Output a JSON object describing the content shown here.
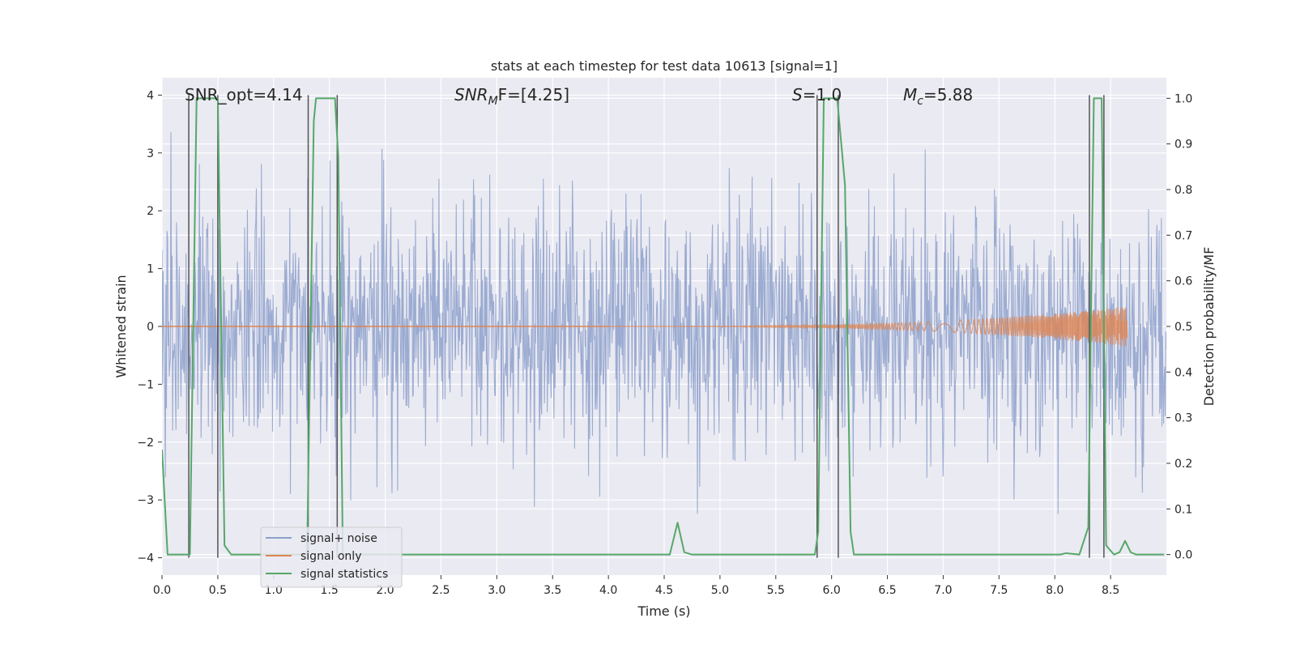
{
  "chart_data": {
    "type": "line",
    "title": "stats at each timestep for test data 10613 [signal=1]",
    "xlabel": "Time (s)",
    "ylabel": "Whitened strain",
    "y2label": "Detection probability/MF",
    "xlim": [
      0,
      9
    ],
    "ylim": [
      -4.3,
      4.3
    ],
    "y2lim": [
      -0.045,
      1.045
    ],
    "xticks": [
      "0.0",
      "0.5",
      "1.0",
      "1.5",
      "2.0",
      "2.5",
      "3.0",
      "3.5",
      "4.0",
      "4.5",
      "5.0",
      "5.5",
      "6.0",
      "6.5",
      "7.0",
      "7.5",
      "8.0",
      "8.5"
    ],
    "yticks": [
      "4",
      "3",
      "2",
      "1",
      "0",
      "−1",
      "−2",
      "−3",
      "−4"
    ],
    "y2ticks": [
      "1.0",
      "0.9",
      "0.8",
      "0.7",
      "0.6",
      "0.5",
      "0.4",
      "0.3",
      "0.2",
      "0.1",
      "0.0"
    ],
    "annotations": {
      "snr_opt": "SNR_opt=4.14",
      "snr_mf_main": "SNR",
      "snr_mf_sub": "M",
      "snr_mf_rest": "F=[4.25]",
      "s": "S",
      "s_rest": "=1.0",
      "mc": "M",
      "mc_sub": "c",
      "mc_rest": "=5.88"
    },
    "legend": {
      "position": "lower-left",
      "entries": [
        "signal+ noise",
        "signal only",
        "signal statistics"
      ]
    },
    "colors": {
      "noise": "#8da0cb",
      "signal": "#dd8452",
      "stats": "#55a868",
      "vlines": "#555555",
      "background": "#eaeaf2",
      "grid": "#ffffff"
    },
    "vertical_lines": [
      0.24,
      0.5,
      1.31,
      1.57,
      5.87,
      6.06,
      8.31,
      8.44
    ],
    "signal_only": {
      "start": 4.0,
      "end": 8.65,
      "peak_amplitude": 0.35
    },
    "series": [
      {
        "name": "signal statistics",
        "axis": "right",
        "x": [
          0.0,
          0.05,
          0.25,
          0.31,
          0.5,
          0.56,
          0.62,
          1.3,
          1.36,
          1.38,
          1.55,
          1.58,
          1.62,
          4.55,
          4.62,
          4.68,
          4.75,
          5.85,
          5.88,
          5.93,
          6.05,
          6.12,
          6.17,
          6.2,
          6.25,
          8.05,
          8.1,
          8.22,
          8.3,
          8.35,
          8.42,
          8.46,
          8.53,
          8.58,
          8.63,
          8.68,
          8.73,
          8.8,
          8.98
        ],
        "values": [
          0.23,
          0.0,
          0.0,
          1.0,
          1.0,
          0.02,
          0.0,
          0.0,
          0.95,
          1.0,
          1.0,
          0.87,
          0.0,
          0.0,
          0.07,
          0.005,
          0.0,
          0.0,
          0.05,
          1.0,
          1.0,
          0.81,
          0.05,
          0.0,
          0.0,
          0.0,
          0.003,
          0.0,
          0.06,
          1.0,
          1.0,
          0.02,
          0.0,
          0.005,
          0.03,
          0.005,
          0.0,
          0.0,
          0.0
        ]
      }
    ]
  }
}
